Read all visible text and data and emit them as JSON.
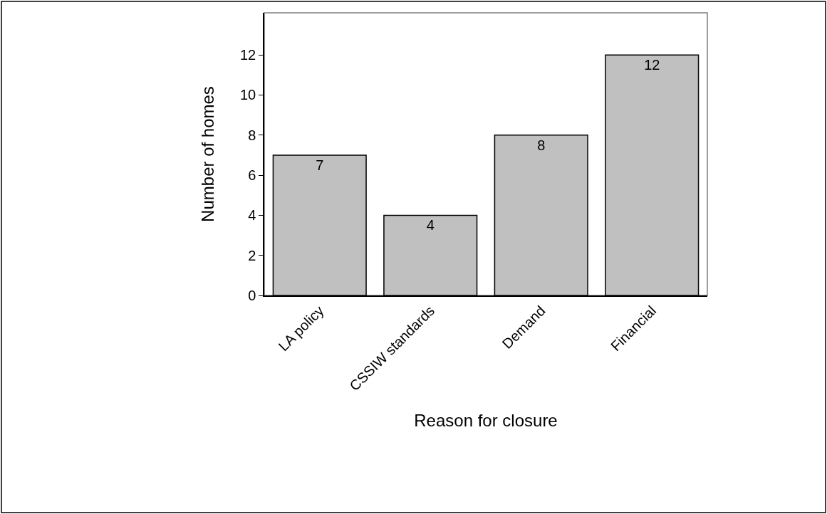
{
  "chart_data": {
    "type": "bar",
    "xlabel": "Reason for closure",
    "ylabel": "Number of homes",
    "categories": [
      "LA policy",
      "CSSIW standards",
      "Demand",
      "Financial"
    ],
    "values": [
      7,
      4,
      8,
      12
    ],
    "color": "#c0c0c0",
    "ylim": [
      0,
      14.1
    ],
    "yticks": [
      0,
      2,
      4,
      6,
      8,
      10,
      12
    ],
    "data_labels": true
  }
}
